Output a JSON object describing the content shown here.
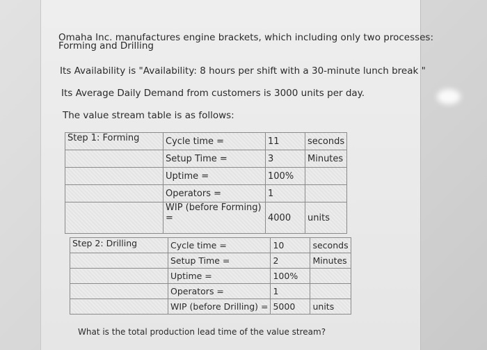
{
  "intro": "Omaha Inc. manufactures engine brackets, which including only two processes:",
  "intro2": "Forming and Drilling",
  "availability": "Its Availability is \"Availability: 8 hours per shift with a 30-minute lunch break \"",
  "demand": "Its Average Daily Demand from customers is 3000 units per day.",
  "table_intro": "The value stream table is as follows:",
  "forming": {
    "step": "Step 1: Forming",
    "rows": [
      [
        "Cycle time =",
        "11",
        "seconds"
      ],
      [
        "Setup Time =",
        "3",
        "Minutes"
      ],
      [
        "Uptime =",
        "100%",
        ""
      ],
      [
        "Operators =",
        "1",
        ""
      ],
      [
        "WIP (before Forming) =",
        "4000",
        "units"
      ]
    ]
  },
  "drilling": {
    "step": "Step 2: Drilling",
    "rows": [
      [
        "Cycle time =",
        "10",
        "seconds"
      ],
      [
        "Setup Time =",
        "2",
        "Minutes"
      ],
      [
        "Uptime =",
        "100%",
        ""
      ],
      [
        "Operators =",
        "1",
        ""
      ],
      [
        "WIP (before Drilling) =",
        "5000",
        "units"
      ]
    ]
  },
  "question": "What is the total production lead time of the value stream?"
}
